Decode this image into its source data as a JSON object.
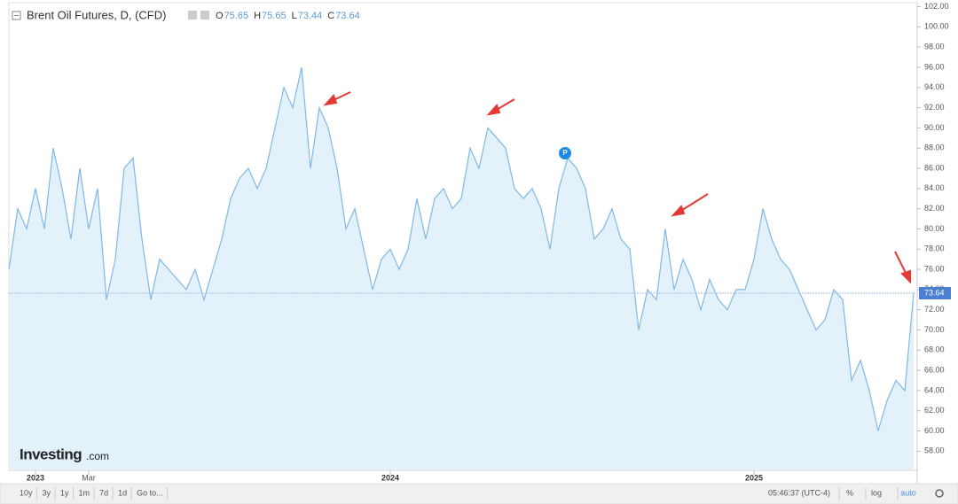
{
  "chart_data": {
    "type": "area",
    "title": "Brent Oil Futures, D, (CFD)",
    "ohlc": [
      {
        "name": "O",
        "value": 75.65
      },
      {
        "name": "H",
        "value": 75.65
      },
      {
        "name": "L",
        "value": 73.44
      },
      {
        "name": "C",
        "value": 73.64
      }
    ],
    "categories": [
      null,
      null,
      null,
      "2023",
      null,
      null,
      null,
      null,
      null,
      "Mar",
      null,
      null,
      null,
      null,
      null,
      null,
      null,
      null,
      null,
      null,
      null,
      null,
      null,
      null,
      null,
      null,
      null,
      null,
      null,
      null,
      null,
      null,
      null,
      null,
      null,
      null,
      null,
      null,
      null,
      null,
      null,
      null,
      null,
      "2024",
      null,
      null,
      null,
      null,
      null,
      null,
      null,
      null,
      null,
      null,
      null,
      null,
      null,
      null,
      null,
      null,
      null,
      null,
      null,
      null,
      null,
      null,
      null,
      null,
      null,
      null,
      null,
      null,
      null,
      null,
      null,
      null,
      null,
      null,
      null,
      null,
      null,
      null,
      null,
      null,
      "2025",
      null,
      null,
      null,
      null,
      null,
      null,
      null,
      null,
      null,
      null,
      null,
      null,
      null,
      null,
      null,
      null,
      null,
      null
    ],
    "values": [
      76,
      82,
      80,
      84,
      80,
      88,
      84,
      79,
      86,
      80,
      84,
      73,
      77,
      86,
      87,
      79,
      73,
      77,
      76,
      75,
      74,
      76,
      73,
      76,
      79,
      83,
      85,
      86,
      84,
      86,
      90,
      94,
      92,
      96,
      86,
      92,
      90,
      86,
      80,
      82,
      78,
      74,
      77,
      78,
      76,
      78,
      83,
      79,
      83,
      84,
      82,
      83,
      88,
      86,
      90,
      89,
      88,
      84,
      83,
      84,
      82,
      78,
      84,
      87,
      86,
      84,
      79,
      80,
      82,
      79,
      78,
      70,
      74,
      73,
      80,
      74,
      77,
      75,
      72,
      75,
      73,
      72,
      74,
      74,
      77,
      82,
      79,
      77,
      76,
      74,
      72,
      70,
      71,
      74,
      73,
      65,
      67,
      64,
      60,
      63,
      65,
      64,
      73.64
    ],
    "color": "#7fb8e6",
    "fill": "#e3f1fb",
    "last_price": {
      "value": 73.64,
      "label": "73.64"
    },
    "ylim": [
      56.1,
      102.4
    ],
    "yticks": [
      {
        "value": 58,
        "label": "58.00"
      },
      {
        "value": 60,
        "label": "60.00"
      },
      {
        "value": 62,
        "label": "62.00"
      },
      {
        "value": 64,
        "label": "64.00"
      },
      {
        "value": 66,
        "label": "66.00"
      },
      {
        "value": 68,
        "label": "68.00"
      },
      {
        "value": 70,
        "label": "70.00"
      },
      {
        "value": 72,
        "label": "72.00"
      },
      {
        "value": 74,
        "label": "74.00"
      },
      {
        "value": 76,
        "label": "76.00"
      },
      {
        "value": 78,
        "label": "78.00"
      },
      {
        "value": 80,
        "label": "80.00"
      },
      {
        "value": 82,
        "label": "82.00"
      },
      {
        "value": 84,
        "label": "84.00"
      },
      {
        "value": 86,
        "label": "86.00"
      },
      {
        "value": 88,
        "label": "88.00"
      },
      {
        "value": 90,
        "label": "90.00"
      },
      {
        "value": 92,
        "label": "92.00"
      },
      {
        "value": 94,
        "label": "94.00"
      },
      {
        "value": 96,
        "label": "96.00"
      },
      {
        "value": 98,
        "label": "98.00"
      },
      {
        "value": 100,
        "label": "100.00"
      },
      {
        "value": 102,
        "label": "102.00"
      }
    ],
    "grid": false
  },
  "ui": {
    "logo": "Investing",
    "logo_suffix": ".com",
    "ranges": [
      "10y",
      "3y",
      "1y",
      "1m",
      "7d",
      "1d",
      "Go to..."
    ],
    "clock": "05:46:37 (UTC-4)",
    "scale_buttons": [
      "%",
      "log",
      "auto"
    ]
  }
}
